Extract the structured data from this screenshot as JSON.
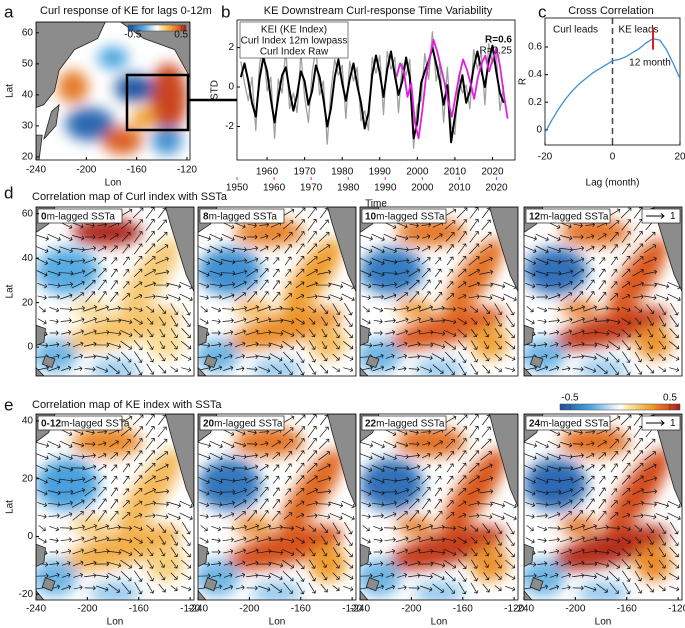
{
  "chart_data": [
    {
      "type": "map",
      "panel": "a",
      "title": "Curl response of KE for lags 0-12m",
      "xlabel": "Lon",
      "ylabel": "Lat",
      "xlim": [
        -240,
        -117.6
      ],
      "ylim": [
        19,
        63.5
      ],
      "xticks": [
        -240,
        -200,
        -160,
        -120
      ],
      "yticks": [
        20,
        30,
        40,
        50,
        60
      ],
      "clim": [
        -0.6,
        0.6
      ],
      "colorbar_ticks": [
        -0.5,
        0.5
      ]
    },
    {
      "type": "line",
      "panel": "b",
      "title": "KE Downstream Curl-response Time Variability",
      "xlabel": "Time",
      "ylabel": "STD",
      "xlim": [
        1952,
        2026
      ],
      "x2lim": [
        1950,
        2025
      ],
      "ylim": [
        -3.7,
        3.4
      ],
      "xticks": [
        1960,
        1970,
        1980,
        1990,
        2000,
        2010,
        2020
      ],
      "x2ticks": [
        1950,
        1960,
        1970,
        1980,
        1990,
        2000,
        2010,
        2020
      ],
      "x2color": "#e020e0",
      "yticks": [
        -2,
        0,
        2
      ],
      "annotations": [
        "R=0.6",
        "R=0.25"
      ],
      "series": [
        {
          "name": "KEI (KE Index)",
          "color": "#e020e0",
          "axis": "x2",
          "x": [
            1993,
            1994,
            1995,
            1996,
            1997,
            1998,
            1999,
            2000,
            2001,
            2002,
            2003,
            2004,
            2005,
            2006,
            2007,
            2008,
            2009,
            2010,
            2011,
            2012,
            2013,
            2014,
            2015,
            2016,
            2017,
            2018,
            2019,
            2020,
            2021,
            2022,
            2023
          ],
          "values": [
            0.5,
            1.2,
            0.8,
            -0.5,
            0.2,
            -1.8,
            -2.6,
            -1.2,
            0.5,
            1.5,
            2.4,
            1.8,
            1.0,
            0.2,
            -0.8,
            -1.5,
            -0.4,
            0.6,
            1.4,
            0.9,
            0.2,
            -0.6,
            0.5,
            1.2,
            1.6,
            0.8,
            1.4,
            2.0,
            1.0,
            -0.4,
            -1.6
          ]
        },
        {
          "name": "Curl Index 12m lowpass",
          "color": "#000000",
          "x": [
            1953,
            1954,
            1955,
            1956,
            1957,
            1958,
            1959,
            1960,
            1961,
            1962,
            1963,
            1964,
            1965,
            1966,
            1967,
            1968,
            1969,
            1970,
            1971,
            1972,
            1973,
            1974,
            1975,
            1976,
            1977,
            1978,
            1979,
            1980,
            1981,
            1982,
            1983,
            1984,
            1985,
            1986,
            1987,
            1988,
            1989,
            1990,
            1991,
            1992,
            1993,
            1994,
            1995,
            1996,
            1997,
            1998,
            1999,
            2000,
            2001,
            2002,
            2003,
            2004,
            2005,
            2006,
            2007,
            2008,
            2009,
            2010,
            2011,
            2012,
            2013,
            2014,
            2015,
            2016,
            2017,
            2018,
            2019,
            2020,
            2021,
            2022,
            2023
          ],
          "values": [
            0.5,
            1.2,
            0.3,
            -0.8,
            -1.5,
            0.4,
            1.5,
            0.8,
            -0.6,
            -1.8,
            -0.5,
            0.6,
            1.0,
            -0.2,
            -1.2,
            -0.4,
            0.8,
            0.3,
            -0.9,
            -0.2,
            1.1,
            0.5,
            -0.6,
            -2.0,
            -1.1,
            0.5,
            1.4,
            0.2,
            -0.7,
            0.4,
            1.2,
            0.1,
            -0.8,
            -2.1,
            -1.3,
            0.6,
            1.6,
            0.7,
            -0.5,
            0.9,
            1.8,
            0.6,
            -0.4,
            0.3,
            1.5,
            0.5,
            -2.6,
            -1.8,
            0.2,
            0.8,
            1.3,
            2.0,
            1.2,
            0.3,
            -0.9,
            0.1,
            -2.8,
            -1.5,
            -0.3,
            0.6,
            -0.8,
            -0.2,
            1.0,
            1.8,
            0.9,
            0.0,
            1.3,
            2.1,
            0.8,
            -0.3,
            -0.8
          ]
        },
        {
          "name": "Curl Index Raw",
          "color": "#a0a0a0",
          "x": [
            1953,
            1954,
            1955,
            1956,
            1957,
            1958,
            1959,
            1960,
            1961,
            1962,
            1963,
            1964,
            1965,
            1966,
            1967,
            1968,
            1969,
            1970,
            1971,
            1972,
            1973,
            1974,
            1975,
            1976,
            1977,
            1978,
            1979,
            1980,
            1981,
            1982,
            1983,
            1984,
            1985,
            1986,
            1987,
            1988,
            1989,
            1990,
            1991,
            1992,
            1993,
            1994,
            1995,
            1996,
            1997,
            1998,
            1999,
            2000,
            2001,
            2002,
            2003,
            2004,
            2005,
            2006,
            2007,
            2008,
            2009,
            2010,
            2011,
            2012,
            2013,
            2014,
            2015,
            2016,
            2017,
            2018,
            2019,
            2020,
            2021,
            2022,
            2023
          ],
          "values": [
            1.3,
            0.2,
            -0.7,
            0.5,
            -2.2,
            1.1,
            2.3,
            -0.2,
            0.5,
            -2.6,
            0.4,
            -0.3,
            1.9,
            -1.1,
            -0.3,
            -1.3,
            1.7,
            -0.5,
            -1.8,
            0.7,
            2.0,
            -0.4,
            0.3,
            -2.9,
            -0.2,
            1.4,
            0.6,
            1.1,
            -1.6,
            1.3,
            0.3,
            1.0,
            -1.7,
            -1.2,
            -2.2,
            1.5,
            0.7,
            1.6,
            -1.4,
            1.8,
            0.9,
            1.5,
            -1.3,
            1.2,
            0.6,
            1.4,
            -3.1,
            -0.9,
            -0.7,
            1.7,
            0.4,
            2.8,
            0.3,
            1.2,
            -1.8,
            1.0,
            -2.0,
            -2.4,
            0.6,
            -0.3,
            0.1,
            -1.1,
            1.9,
            0.9,
            1.8,
            -0.9,
            2.2,
            1.2,
            1.7,
            -1.2,
            0.1
          ]
        }
      ]
    },
    {
      "type": "line",
      "panel": "c",
      "title": "Cross Correlation",
      "xlabel": "Lag (month)",
      "ylabel": "R",
      "xlim": [
        -20,
        20
      ],
      "ylim": [
        -0.11,
        0.81
      ],
      "xticks": [
        -20,
        0,
        20
      ],
      "yticks": [
        0,
        0.2,
        0.4,
        0.6
      ],
      "vline": 0,
      "annotations": [
        "Curl leads",
        "KE leads"
      ],
      "highlight": {
        "x": 12,
        "label": "12 month",
        "color": "#e02020"
      },
      "series": [
        {
          "color": "#3d8fd8",
          "x": [
            -20,
            -18,
            -16,
            -14,
            -12,
            -10,
            -8,
            -6,
            -4,
            -2,
            0,
            2,
            4,
            6,
            8,
            10,
            12,
            14,
            16,
            18,
            20
          ],
          "values": [
            -0.02,
            0.07,
            0.15,
            0.22,
            0.28,
            0.33,
            0.37,
            0.41,
            0.44,
            0.47,
            0.5,
            0.51,
            0.53,
            0.56,
            0.59,
            0.63,
            0.66,
            0.65,
            0.58,
            0.48,
            0.37
          ]
        }
      ]
    },
    {
      "type": "map_grid",
      "panel": "d",
      "title": "Correlation map of Curl index with SSTa",
      "ylabel": "Lat",
      "ylim": [
        -13,
        63
      ],
      "yticks": [
        0,
        20,
        40,
        60
      ],
      "reference_vector": 1,
      "maps": [
        {
          "lag": "0",
          "suffix": "m-lagged SSTa"
        },
        {
          "lag": "8",
          "suffix": "m-lagged SSTa"
        },
        {
          "lag": "10",
          "suffix": "m-lagged SSTa"
        },
        {
          "lag": "12",
          "suffix": "m-lagged SSTa"
        }
      ]
    },
    {
      "type": "map_grid",
      "panel": "e",
      "title": "Correlation map of KE index with SSTa",
      "ylabel": "Lat",
      "xlabel": "Lon",
      "xlim": [
        -240,
        -117
      ],
      "xticks": [
        -240,
        -200,
        -160,
        -120
      ],
      "ylim": [
        -22,
        42.4
      ],
      "yticks": [
        -20,
        0,
        20,
        40
      ],
      "clim": [
        -0.6,
        0.6
      ],
      "colorbar_ticks": [
        -0.5,
        0.5
      ],
      "reference_vector": 1,
      "maps": [
        {
          "lag": "0-12",
          "suffix": "m-lagged SSTa"
        },
        {
          "lag": "20",
          "suffix": "m-lagged SSTa"
        },
        {
          "lag": "22",
          "suffix": "m-lagged SSTa"
        },
        {
          "lag": "24",
          "suffix": "m-lagged SSTa"
        }
      ]
    }
  ]
}
